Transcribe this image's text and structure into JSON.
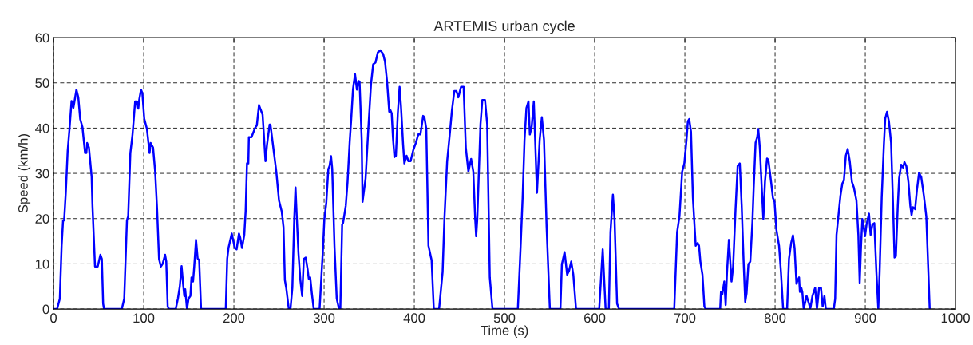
{
  "chart_data": {
    "type": "line",
    "title": "ARTEMIS urban cycle",
    "xlabel": "Time (s)",
    "ylabel": "Speed (km/h)",
    "xlim": [
      0,
      1000
    ],
    "ylim": [
      0,
      60
    ],
    "xticks": [
      0,
      100,
      200,
      300,
      400,
      500,
      600,
      700,
      800,
      900,
      1000
    ],
    "yticks": [
      0,
      10,
      20,
      30,
      40,
      50,
      60
    ],
    "grid": true,
    "line_style": "solid",
    "marker": "none",
    "legend": false,
    "series": [
      {
        "color": "#0000ff",
        "x": [
          0,
          4,
          7,
          9,
          10.6,
          11.8,
          13.6,
          15.7,
          17.8,
          20,
          22,
          23,
          25.4,
          27.5,
          29.6,
          32,
          35,
          36.4,
          37.3,
          39.3,
          42.3,
          43.2,
          46,
          49,
          52,
          53.6,
          55,
          56,
          75.7,
          78.4,
          81.4,
          82.8,
          85.2,
          87.6,
          90.5,
          92.6,
          94,
          95,
          97,
          98.5,
          100.6,
          103.6,
          106.5,
          107.7,
          110.4,
          112.7,
          114.8,
          117,
          119,
          121,
          123.7,
          125,
          126.6,
          128,
          135.5,
          137.9,
          140,
          142,
          143.8,
          145,
          146,
          148,
          149.7,
          151.8,
          153,
          154.7,
          156,
          158,
          159.8,
          161.5,
          163.6,
          191,
          192.6,
          194,
          197.6,
          201,
          203,
          205.6,
          207,
          209,
          211.5,
          213,
          214.5,
          216,
          216.6,
          219.5,
          223.4,
          225.4,
          227.8,
          230,
          231.8,
          233,
          235,
          236.7,
          239.6,
          240.5,
          242.6,
          247,
          250,
          253,
          255,
          256.5,
          258,
          260.9,
          262.7,
          264.8,
          266.9,
          268.3,
          269.8,
          271.6,
          273.7,
          275.7,
          277.5,
          279.6,
          281.7,
          283,
          284.6,
          286.4,
          288.5,
          295,
          297.3,
          298.8,
          300.3,
          302.4,
          304.7,
          306,
          307.7,
          309,
          311.5,
          314,
          316.6,
          318,
          320,
          321,
          324,
          326,
          328.4,
          329.9,
          332,
          334.3,
          336.4,
          338.2,
          339.3,
          341.7,
          342.6,
          346,
          349,
          352,
          354.4,
          357,
          359.5,
          362.4,
          365.4,
          367.5,
          369.8,
          372.2,
          373.4,
          374.9,
          376.3,
          378,
          379.6,
          381.7,
          383.7,
          385.2,
          387.6,
          389,
          391.4,
          393.5,
          395.9,
          398.8,
          401.8,
          404.4,
          406.8,
          409.8,
          411.2,
          413.3,
          415.7,
          419.2,
          421.6,
          427.5,
          431.4,
          433.4,
          436.4,
          439.3,
          441.7,
          444.4,
          446.7,
          448.8,
          451.8,
          454.7,
          457.1,
          460,
          463,
          465.4,
          467.5,
          468.6,
          469.8,
          473.4,
          475.4,
          478.4,
          480.8,
          483.7,
          486.7,
          514.8,
          517.8,
          520.1,
          522.2,
          524.3,
          526.6,
          528.1,
          530.2,
          532.5,
          534,
          536,
          539,
          541.4,
          543.8,
          546.7,
          550.3,
          562,
          563.6,
          566.6,
          569.5,
          571.6,
          574,
          576.3,
          579.3,
          605,
          608.9,
          612.1,
          615.7,
          617.5,
          620.2,
          622,
          624.8,
          627,
          688.2,
          691.4,
          694,
          697,
          699.4,
          701.8,
          703.3,
          704.8,
          706.8,
          708.9,
          712,
          714.2,
          715.7,
          717.2,
          719.5,
          721.6,
          723,
          739.1,
          740,
          741.4,
          743.7,
          745.2,
          746.7,
          748.8,
          751.7,
          753.5,
          756.2,
          758.5,
          760.9,
          763,
          765,
          766.9,
          768.4,
          770.4,
          772.5,
          774.9,
          776.3,
          778.4,
          780.2,
          781.4,
          783.1,
          785.2,
          787,
          788.8,
          791.1,
          792.6,
          795.6,
          797.6,
          799.4,
          801.5,
          804.4,
          806.5,
          808.9,
          813.3,
          815.4,
          817.8,
          819.8,
          821.6,
          823.7,
          825.1,
          826.6,
          827.5,
          829,
          830.2,
          831.7,
          834.9,
          837.6,
          839,
          841.4,
          844.4,
          846.4,
          848.8,
          850.9,
          852.7,
          854.7,
          856.2,
          865.1,
          866.6,
          868.1,
          871,
          872.5,
          874.6,
          876.3,
          878.4,
          880.5,
          882.8,
          885.2,
          887.3,
          890.2,
          892.3,
          893.8,
          895.3,
          896.7,
          898.2,
          899.7,
          901.4,
          904.1,
          905.9,
          907.9,
          910,
          912.3,
          914.4,
          915.9,
          918.2,
          920.6,
          922.1,
          924.1,
          926.2,
          928.6,
          930.7,
          932.4,
          933.9,
          936,
          937.5,
          939.8,
          941.9,
          943.4,
          945.5,
          947.8,
          949.9,
          951.3,
          952.8,
          955.2,
          957.2,
          959.6,
          962,
          964.9,
          967.6,
          969.9,
          971.4
        ],
        "values": [
          0,
          0,
          2.3,
          14,
          19.6,
          19.6,
          25.7,
          35,
          40,
          46,
          44.5,
          45.6,
          48.5,
          46.8,
          42,
          40.3,
          34.5,
          34.5,
          36.7,
          35.7,
          29.2,
          22.8,
          9.4,
          9.4,
          12,
          11.1,
          1.2,
          0,
          0,
          2.3,
          19.6,
          20.5,
          34.5,
          38.6,
          45.9,
          45.9,
          44.3,
          46.2,
          48.5,
          47.7,
          42.1,
          39.8,
          34.5,
          36.7,
          35.7,
          30.4,
          22.2,
          11.1,
          9.4,
          10,
          12,
          10.5,
          0.6,
          0,
          0,
          2.3,
          5,
          9.5,
          5.3,
          2.9,
          4.4,
          0,
          2.3,
          2.9,
          7,
          6.1,
          9.4,
          15.3,
          11.2,
          10.8,
          0,
          0,
          11.1,
          13.5,
          16.7,
          13.5,
          13.2,
          16.7,
          15.8,
          13.5,
          16.4,
          21.6,
          32.2,
          32.2,
          38,
          38,
          40,
          40.6,
          45.1,
          43.9,
          43,
          39.2,
          32.7,
          36.3,
          40.8,
          40.8,
          37.4,
          30.4,
          24,
          21.6,
          18.1,
          6.4,
          4.7,
          0,
          0,
          4.7,
          19.9,
          26.9,
          19.9,
          12.3,
          6.4,
          2.9,
          11.1,
          11.4,
          8.8,
          6.7,
          7,
          3.5,
          0,
          0,
          8.2,
          13.5,
          19.9,
          23.4,
          31,
          31.6,
          33.8,
          31,
          14,
          2.3,
          0,
          0,
          18.7,
          19,
          22.8,
          28.1,
          37.1,
          41.5,
          48.5,
          51.9,
          48.5,
          50.4,
          50.3,
          37.4,
          23.7,
          28.9,
          39.8,
          49.7,
          54.1,
          54.5,
          56.7,
          57.2,
          56.4,
          54.7,
          50.3,
          43.6,
          44,
          43.3,
          38,
          33.6,
          33.9,
          43.3,
          49.1,
          45,
          36.3,
          32.2,
          33.9,
          32.7,
          32.7,
          35.1,
          36.8,
          38.6,
          38.6,
          42.7,
          42.4,
          39.8,
          14,
          10.8,
          0,
          0,
          8.2,
          19.9,
          32.7,
          38.6,
          43.9,
          48.2,
          48.2,
          46.8,
          49.1,
          49.1,
          35.7,
          30.4,
          33.2,
          30.4,
          19.9,
          16.1,
          19.9,
          40.9,
          46.2,
          46.2,
          40.9,
          7,
          0,
          0,
          13.5,
          24.6,
          37.4,
          44.4,
          45.9,
          38.6,
          40.4,
          45.9,
          37.4,
          25.7,
          37.4,
          42.4,
          37.4,
          18.1,
          0,
          0,
          9.9,
          12.6,
          7.6,
          8.5,
          10.5,
          7.6,
          0,
          0,
          13.2,
          0,
          0,
          17,
          25.3,
          19.9,
          1.2,
          0,
          0,
          17,
          20.5,
          30.4,
          32.2,
          37.4,
          41.5,
          42,
          39.2,
          24.6,
          14,
          14.6,
          14,
          10.5,
          7.6,
          0.6,
          0,
          0,
          3.8,
          3.2,
          6.1,
          0.9,
          8.2,
          15.3,
          6.1,
          9.4,
          22.2,
          31.6,
          32.2,
          22.8,
          11.1,
          1.6,
          3.5,
          9.9,
          10.5,
          19.3,
          26.9,
          36.8,
          38,
          39.8,
          35.7,
          26.9,
          19.9,
          28.1,
          33.3,
          33,
          28.1,
          24.6,
          23.7,
          17.5,
          14,
          8.2,
          0,
          0,
          11.1,
          14.6,
          16.3,
          13.5,
          5.6,
          6.4,
          7,
          3.8,
          4.7,
          3.8,
          0,
          2.9,
          1.2,
          0,
          2.9,
          4.7,
          0,
          4.7,
          4.7,
          0.6,
          2.9,
          0,
          0,
          2.3,
          16.4,
          22.2,
          25.1,
          27.8,
          28.4,
          33.9,
          35.4,
          32.7,
          28.1,
          26.9,
          24,
          16.4,
          5.8,
          14,
          19.9,
          18.1,
          16.1,
          18.7,
          21.1,
          16.4,
          18.7,
          19,
          8.2,
          0,
          8.2,
          24.6,
          36.3,
          42.1,
          43.6,
          41.5,
          36.8,
          23.4,
          11.4,
          11.7,
          22.8,
          28.9,
          31.9,
          31.3,
          32.5,
          31.6,
          28.1,
          22.8,
          20.8,
          22.5,
          22.1,
          26.3,
          30.1,
          29.2,
          25.1,
          20.5,
          8.2,
          0
        ]
      }
    ]
  }
}
